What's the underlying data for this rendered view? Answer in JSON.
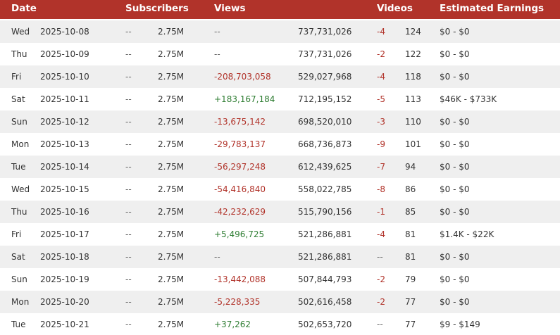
{
  "header": {
    "date": "Date",
    "subscribers": "Subscribers",
    "views": "Views",
    "videos": "Videos",
    "earnings": "Estimated Earnings"
  },
  "colors": {
    "header_bg": "#b1332a",
    "negative": "#b1332a",
    "positive": "#2e7d32",
    "stripe": "#efefef"
  },
  "rows": [
    {
      "day": "Wed",
      "date": "2025-10-08",
      "sub_delta": "--",
      "subs": "2.75M",
      "view_delta": "--",
      "view_sign": "neu",
      "views": "737,731,026",
      "video_delta": "-4",
      "video_sign": "neg",
      "videos": "124",
      "earnings": "$0 - $0"
    },
    {
      "day": "Thu",
      "date": "2025-10-09",
      "sub_delta": "--",
      "subs": "2.75M",
      "view_delta": "--",
      "view_sign": "neu",
      "views": "737,731,026",
      "video_delta": "-2",
      "video_sign": "neg",
      "videos": "122",
      "earnings": "$0 - $0"
    },
    {
      "day": "Fri",
      "date": "2025-10-10",
      "sub_delta": "--",
      "subs": "2.75M",
      "view_delta": "-208,703,058",
      "view_sign": "neg",
      "views": "529,027,968",
      "video_delta": "-4",
      "video_sign": "neg",
      "videos": "118",
      "earnings": "$0 - $0"
    },
    {
      "day": "Sat",
      "date": "2025-10-11",
      "sub_delta": "--",
      "subs": "2.75M",
      "view_delta": "+183,167,184",
      "view_sign": "pos",
      "views": "712,195,152",
      "video_delta": "-5",
      "video_sign": "neg",
      "videos": "113",
      "earnings": "$46K - $733K"
    },
    {
      "day": "Sun",
      "date": "2025-10-12",
      "sub_delta": "--",
      "subs": "2.75M",
      "view_delta": "-13,675,142",
      "view_sign": "neg",
      "views": "698,520,010",
      "video_delta": "-3",
      "video_sign": "neg",
      "videos": "110",
      "earnings": "$0 - $0"
    },
    {
      "day": "Mon",
      "date": "2025-10-13",
      "sub_delta": "--",
      "subs": "2.75M",
      "view_delta": "-29,783,137",
      "view_sign": "neg",
      "views": "668,736,873",
      "video_delta": "-9",
      "video_sign": "neg",
      "videos": "101",
      "earnings": "$0 - $0"
    },
    {
      "day": "Tue",
      "date": "2025-10-14",
      "sub_delta": "--",
      "subs": "2.75M",
      "view_delta": "-56,297,248",
      "view_sign": "neg",
      "views": "612,439,625",
      "video_delta": "-7",
      "video_sign": "neg",
      "videos": "94",
      "earnings": "$0 - $0"
    },
    {
      "day": "Wed",
      "date": "2025-10-15",
      "sub_delta": "--",
      "subs": "2.75M",
      "view_delta": "-54,416,840",
      "view_sign": "neg",
      "views": "558,022,785",
      "video_delta": "-8",
      "video_sign": "neg",
      "videos": "86",
      "earnings": "$0 - $0"
    },
    {
      "day": "Thu",
      "date": "2025-10-16",
      "sub_delta": "--",
      "subs": "2.75M",
      "view_delta": "-42,232,629",
      "view_sign": "neg",
      "views": "515,790,156",
      "video_delta": "-1",
      "video_sign": "neg",
      "videos": "85",
      "earnings": "$0 - $0"
    },
    {
      "day": "Fri",
      "date": "2025-10-17",
      "sub_delta": "--",
      "subs": "2.75M",
      "view_delta": "+5,496,725",
      "view_sign": "pos",
      "views": "521,286,881",
      "video_delta": "-4",
      "video_sign": "neg",
      "videos": "81",
      "earnings": "$1.4K - $22K"
    },
    {
      "day": "Sat",
      "date": "2025-10-18",
      "sub_delta": "--",
      "subs": "2.75M",
      "view_delta": "--",
      "view_sign": "neu",
      "views": "521,286,881",
      "video_delta": "--",
      "video_sign": "neu",
      "videos": "81",
      "earnings": "$0 - $0"
    },
    {
      "day": "Sun",
      "date": "2025-10-19",
      "sub_delta": "--",
      "subs": "2.75M",
      "view_delta": "-13,442,088",
      "view_sign": "neg",
      "views": "507,844,793",
      "video_delta": "-2",
      "video_sign": "neg",
      "videos": "79",
      "earnings": "$0 - $0"
    },
    {
      "day": "Mon",
      "date": "2025-10-20",
      "sub_delta": "--",
      "subs": "2.75M",
      "view_delta": "-5,228,335",
      "view_sign": "neg",
      "views": "502,616,458",
      "video_delta": "-2",
      "video_sign": "neg",
      "videos": "77",
      "earnings": "$0 - $0"
    },
    {
      "day": "Tue",
      "date": "2025-10-21",
      "sub_delta": "--",
      "subs": "2.75M",
      "view_delta": "+37,262",
      "view_sign": "pos",
      "views": "502,653,720",
      "video_delta": "--",
      "video_sign": "neu",
      "videos": "77",
      "earnings": "$9 - $149"
    }
  ]
}
